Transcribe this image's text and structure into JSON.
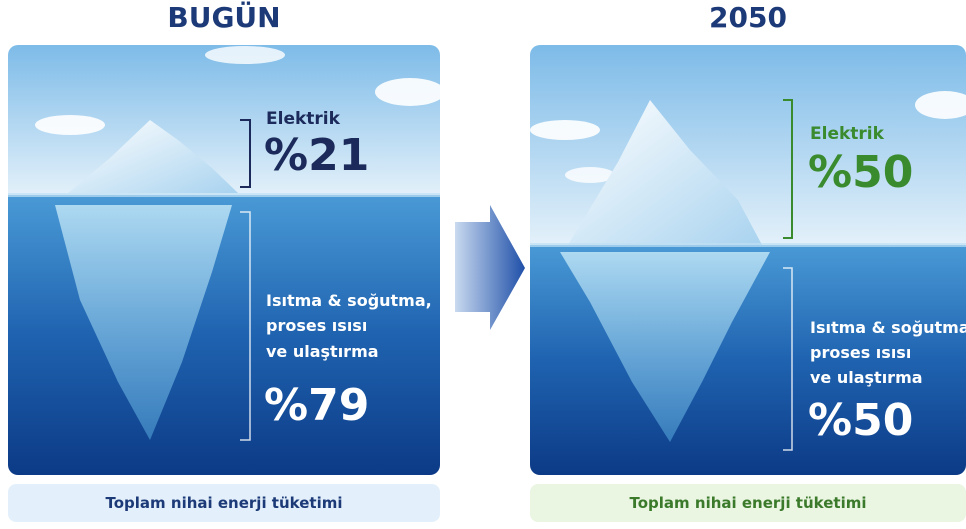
{
  "panels": [
    {
      "title": "BUGÜN",
      "upper": {
        "label": "Elektrik",
        "value": "%21"
      },
      "lower": {
        "lines": [
          "Isıtma & soğutma,",
          "proses ısısı",
          "ve ulaştırma"
        ],
        "value": "%79"
      },
      "footer": "Toplam nihai enerji tüketimi"
    },
    {
      "title": "2050",
      "upper": {
        "label": "Elektrik",
        "value": "%50"
      },
      "lower": {
        "lines": [
          "Isıtma & soğutma,",
          "proses ısısı",
          "ve ulaştırma"
        ],
        "value": "%50"
      },
      "footer": "Toplam nihai enerji tüketimi"
    }
  ]
}
